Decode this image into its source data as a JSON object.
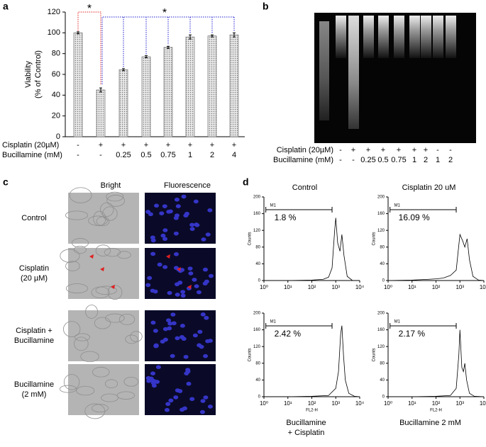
{
  "panel_labels": [
    "a",
    "b",
    "c",
    "d"
  ],
  "chart_data": [
    {
      "type": "bar",
      "ylabel": [
        "Viability",
        "(% of Control)"
      ],
      "category_row_labels": [
        "Cisplatin (20µM)",
        "Bucillamine (mM)"
      ],
      "categories": [
        [
          "-",
          "-"
        ],
        [
          "+",
          "-"
        ],
        [
          "+",
          "0.25"
        ],
        [
          "+",
          "0.5"
        ],
        [
          "+",
          "0.75"
        ],
        [
          "+",
          "1"
        ],
        [
          "+",
          "2"
        ],
        [
          "+",
          "4"
        ]
      ],
      "values": [
        100,
        45,
        64.5,
        77,
        86,
        96,
        97,
        98
      ],
      "errors": [
        1,
        2,
        1,
        1,
        1,
        2,
        1,
        2
      ],
      "color": "#c8c8c8",
      "ylim": [
        0,
        120
      ],
      "yticks": [
        0,
        20,
        40,
        60,
        80,
        100,
        120
      ],
      "annotations": [
        {
          "text": "*",
          "color": "#e02020"
        },
        {
          "text": "*",
          "color": "#2020d0"
        }
      ]
    },
    {
      "type": "line",
      "title": [
        "Control"
      ],
      "title_position": "top",
      "log_x": true,
      "x": [
        1,
        10,
        100,
        300,
        500,
        700,
        900,
        1000,
        1200,
        1500,
        1800,
        2200,
        3000,
        5000,
        10000
      ],
      "values": [
        0,
        0,
        1,
        3,
        8,
        30,
        120,
        150,
        90,
        70,
        110,
        60,
        10,
        0,
        0
      ],
      "xlim": [
        1,
        10000
      ],
      "ylim": [
        0,
        200
      ],
      "xticks": [
        {
          "value": 1,
          "label": "10⁰"
        },
        {
          "value": 10,
          "label": "10¹"
        },
        {
          "value": 100,
          "label": "10²"
        },
        {
          "value": 1000,
          "label": "10³"
        },
        {
          "value": 10000,
          "label": "10⁴"
        }
      ],
      "yticks": [
        0,
        40,
        80,
        120,
        160,
        200
      ],
      "ylabel": "Counts",
      "xlabel": null,
      "marker_label": "M1",
      "gate": [
        1.2,
        700
      ],
      "gate_percent": "1.8 %"
    },
    {
      "type": "line",
      "title": [
        "Cisplatin 20 uM"
      ],
      "title_position": "top",
      "log_x": true,
      "x": [
        1,
        10,
        50,
        100,
        200,
        400,
        700,
        1000,
        1300,
        1600,
        2000,
        2500,
        3500,
        6000,
        10000
      ],
      "values": [
        0,
        1,
        3,
        4,
        6,
        12,
        25,
        110,
        95,
        80,
        100,
        50,
        10,
        1,
        0
      ],
      "xlim": [
        1,
        10000
      ],
      "ylim": [
        0,
        200
      ],
      "xticks": [
        {
          "value": 1,
          "label": "10⁰"
        },
        {
          "value": 10,
          "label": "10¹"
        },
        {
          "value": 100,
          "label": "10²"
        },
        {
          "value": 1000,
          "label": "10³"
        },
        {
          "value": 10000,
          "label": "10⁴"
        }
      ],
      "yticks": [
        0,
        40,
        80,
        120,
        160,
        200
      ],
      "ylabel": "Counts",
      "xlabel": null,
      "marker_label": "M1",
      "gate": [
        1.2,
        700
      ],
      "gate_percent": "16.09 %"
    },
    {
      "type": "line",
      "title": [
        "Bucillamine",
        "+ Cisplatin"
      ],
      "title_position": "bottom",
      "log_x": true,
      "x": [
        1,
        10,
        100,
        500,
        1000,
        1300,
        1600,
        1800,
        2100,
        2500,
        3500,
        6000,
        10000
      ],
      "values": [
        0,
        0,
        1,
        3,
        20,
        60,
        150,
        170,
        100,
        40,
        8,
        1,
        0
      ],
      "xlim": [
        1,
        10000
      ],
      "ylim": [
        0,
        200
      ],
      "xticks": [
        {
          "value": 1,
          "label": "10⁰"
        },
        {
          "value": 10,
          "label": "10¹"
        },
        {
          "value": 100,
          "label": "10²"
        },
        {
          "value": 1000,
          "label": "10³"
        },
        {
          "value": 10000,
          "label": "10⁴"
        }
      ],
      "yticks": [
        0,
        40,
        80,
        120,
        160,
        200
      ],
      "ylabel": "Counts",
      "xlabel": "FL2-H",
      "marker_label": "M1",
      "gate": [
        1.2,
        700
      ],
      "gate_percent": "2.42 %"
    },
    {
      "type": "line",
      "title": [
        "Bucillamine 2 mM"
      ],
      "title_position": "bottom",
      "log_x": true,
      "x": [
        1,
        10,
        100,
        400,
        700,
        900,
        1000,
        1200,
        1400,
        1600,
        1900,
        2500,
        4000,
        10000
      ],
      "values": [
        0,
        0,
        1,
        3,
        20,
        100,
        160,
        70,
        60,
        80,
        40,
        8,
        1,
        0
      ],
      "xlim": [
        1,
        10000
      ],
      "ylim": [
        0,
        200
      ],
      "xticks": [
        {
          "value": 1,
          "label": "10⁰"
        },
        {
          "value": 10,
          "label": "10¹"
        },
        {
          "value": 100,
          "label": "10²"
        },
        {
          "value": 1000,
          "label": "10³"
        },
        {
          "value": 10000,
          "label": "10⁴"
        }
      ],
      "yticks": [
        0,
        40,
        80,
        120,
        160,
        200
      ],
      "ylabel": "Counts",
      "xlabel": "FL2-H",
      "marker_label": "M1",
      "gate": [
        1.2,
        700
      ],
      "gate_percent": "2.17 %"
    }
  ],
  "gel": {
    "row_labels": [
      "Cisplatin (20µM)",
      "Bucillamine (mM)"
    ],
    "lanes": [
      [
        "-",
        "-"
      ],
      [
        "+",
        "-"
      ],
      [
        "+",
        "0.25"
      ],
      [
        "+",
        "0.5"
      ],
      [
        "+",
        "0.75"
      ],
      [
        "+",
        "1"
      ],
      [
        "+",
        "2"
      ],
      [
        "-",
        "1"
      ],
      [
        "-",
        "2"
      ]
    ]
  },
  "micrographs": {
    "columns": [
      "Bright",
      "Fluorescence"
    ],
    "rows": [
      [
        "Control"
      ],
      [
        "Cisplatin",
        "(20 µM)"
      ],
      [
        "Cisplatin +",
        "Bucillamine"
      ],
      [
        "Bucillamine",
        "(2 mM)"
      ]
    ]
  }
}
